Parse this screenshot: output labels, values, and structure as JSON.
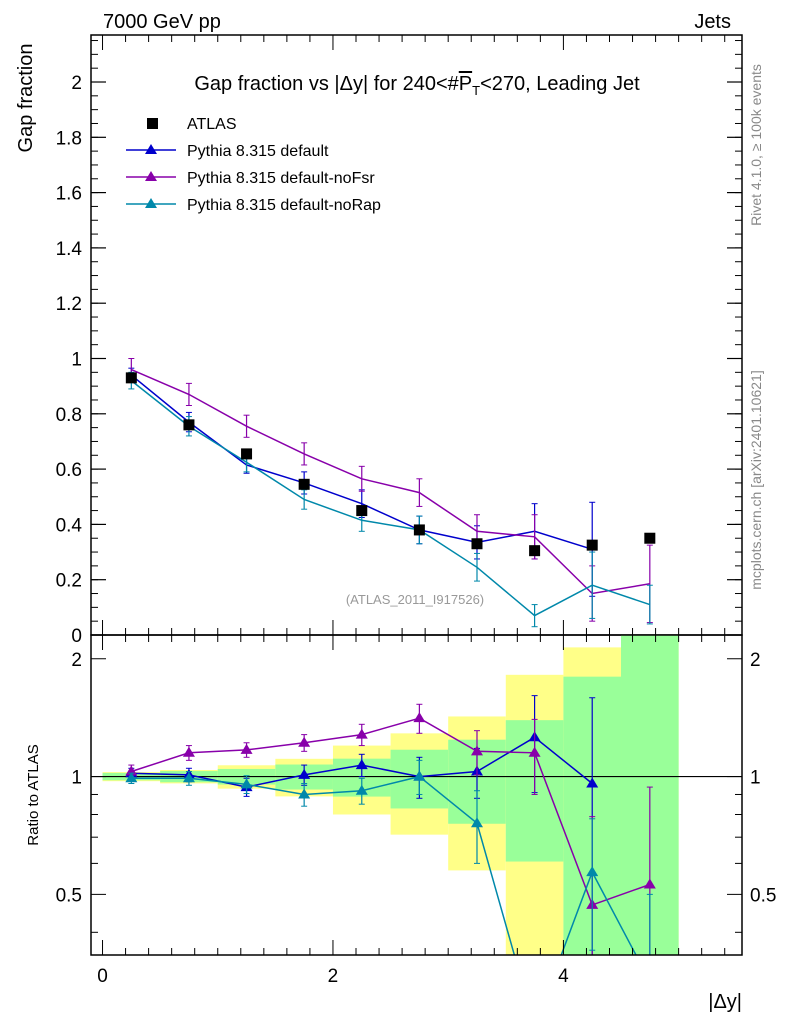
{
  "header": {
    "left": "7000 GeV pp",
    "right": "Jets",
    "side_top": "Rivet 4.1.0, ≥ 100k events",
    "side_bottom": "mcplots.cern.ch [arXiv:2401.10621]"
  },
  "chart_data": {
    "type": "line",
    "title": "Gap fraction vs |Δy| for 240<#P̅T<270, Leading Jet",
    "title_parts": {
      "pre": "Gap fraction vs |Δy| for 240<#",
      "p": "P",
      "sub": "T",
      "post": "<270, Leading Jet"
    },
    "ylabel": "Gap fraction",
    "xlabel": "|Δy|",
    "ratio_ylabel": "Ratio to ATLAS",
    "watermark": "(ATLAS_2011_I917526)",
    "xlim": [
      -0.1,
      5.55
    ],
    "ylim": [
      0,
      2.17
    ],
    "ratio_ylim": [
      0.35,
      2.3
    ],
    "x_ticks": [
      0,
      2,
      4
    ],
    "y_ticks": [
      0,
      0.2,
      0.4,
      0.6,
      0.8,
      1,
      1.2,
      1.4,
      1.6,
      1.8,
      2
    ],
    "y_tick_labels": [
      "0",
      "0.2",
      "0.4",
      "0.6",
      "0.8",
      "1",
      "1.2",
      "1.4",
      "1.6",
      "1.8",
      "2"
    ],
    "ratio_ticks": [
      0.5,
      1,
      2
    ],
    "x": [
      0.25,
      0.75,
      1.25,
      1.75,
      2.25,
      2.75,
      3.25,
      3.75,
      4.25,
      4.75
    ],
    "bin_edges": [
      0,
      0.5,
      1,
      1.5,
      2,
      2.5,
      3,
      3.5,
      4,
      4.5,
      5
    ],
    "data": {
      "name": "ATLAS",
      "values": [
        0.93,
        0.76,
        0.655,
        0.545,
        0.45,
        0.38,
        0.33,
        0.305,
        0.325,
        0.35
      ],
      "band_inner": [
        0.02,
        0.025,
        0.03,
        0.04,
        0.05,
        0.065,
        0.08,
        0.12,
        0.26,
        0.5
      ],
      "band_outer": [
        0.025,
        0.03,
        0.045,
        0.06,
        0.09,
        0.11,
        0.14,
        0.25,
        0.37,
        0.8
      ]
    },
    "series": [
      {
        "name": "Pythia 8.315 default",
        "color": "#0000cc",
        "values": [
          0.94,
          0.77,
          0.615,
          0.55,
          0.475,
          0.38,
          0.335,
          0.375,
          0.31,
          null
        ],
        "errors": [
          0.025,
          0.035,
          0.03,
          0.04,
          0.05,
          0.05,
          0.06,
          0.1,
          0.17,
          null
        ]
      },
      {
        "name": "Pythia 8.315 default-noFsr",
        "color": "#8800aa",
        "values": [
          0.96,
          0.87,
          0.755,
          0.655,
          0.565,
          0.515,
          0.375,
          0.355,
          0.15,
          0.185
        ],
        "errors": [
          0.04,
          0.04,
          0.04,
          0.04,
          0.045,
          0.05,
          0.06,
          0.08,
          0.1,
          0.14
        ]
      },
      {
        "name": "Pythia 8.315 default-noRap",
        "color": "#0088aa",
        "values": [
          0.92,
          0.755,
          0.625,
          0.49,
          0.415,
          0.38,
          0.245,
          0.07,
          0.18,
          0.11
        ],
        "errors": [
          0.03,
          0.035,
          0.035,
          0.035,
          0.04,
          0.05,
          0.05,
          0.04,
          0.12,
          0.07
        ]
      }
    ],
    "ratio_series": [
      {
        "name": "Pythia 8.315 default",
        "values": [
          1.02,
          1.01,
          0.94,
          1.01,
          1.07,
          1.0,
          1.03,
          1.26,
          0.96,
          null
        ],
        "errors": [
          0.03,
          0.04,
          0.05,
          0.06,
          0.07,
          0.12,
          0.15,
          0.35,
          0.63,
          null
        ]
      },
      {
        "name": "Pythia 8.315 default-noFsr",
        "values": [
          1.03,
          1.15,
          1.17,
          1.22,
          1.28,
          1.41,
          1.16,
          1.15,
          0.47,
          0.53
        ],
        "errors": [
          0.04,
          0.05,
          0.05,
          0.06,
          0.08,
          0.12,
          0.15,
          0.25,
          0.32,
          0.41
        ]
      },
      {
        "name": "Pythia 8.315 default-noRap",
        "values": [
          0.99,
          0.99,
          0.955,
          0.9,
          0.92,
          1.0,
          0.76,
          0.23,
          0.57,
          0.3
        ],
        "errors": [
          0.03,
          0.04,
          0.05,
          0.06,
          0.07,
          0.1,
          0.16,
          0.12,
          0.21,
          0.2
        ]
      }
    ],
    "colors": {
      "band_inner": "#99ff99",
      "band_outer": "#ffff88",
      "axis": "#000000",
      "watermark": "#999999",
      "side_text": "#888888"
    }
  }
}
